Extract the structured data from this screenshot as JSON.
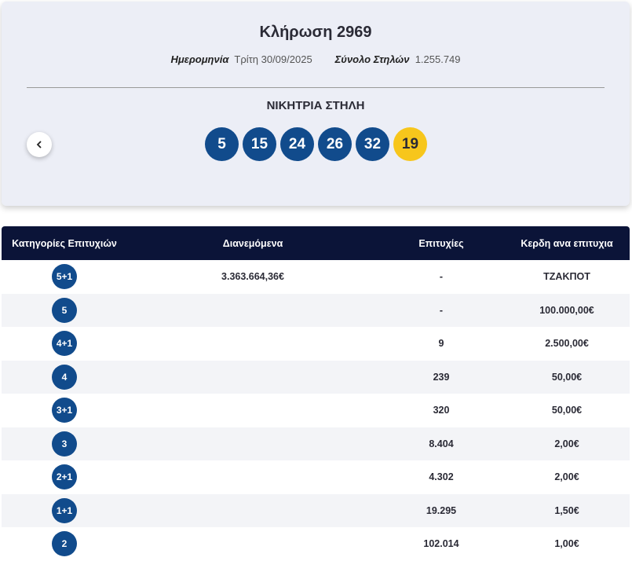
{
  "header": {
    "title": "Κλήρωση 2969",
    "date_label": "Ημερομηνία",
    "date_value": "Τρίτη 30/09/2025",
    "total_label": "Σύνολο Στηλών",
    "total_value": "1.255.749",
    "winning_label": "ΝΙΚΗΤΡΙΑ ΣΤΗΛΗ",
    "numbers": [
      "5",
      "15",
      "24",
      "26",
      "32"
    ],
    "bonus": "19"
  },
  "table": {
    "headers": [
      "Κατηγορίες Επιτυχιών",
      "Διανεμόμενα",
      "Επιτυχίες",
      "Κερδη ανα επιτυχια"
    ],
    "rows": [
      {
        "category": "5+1",
        "distributed": "3.363.664,36€",
        "winners": "-",
        "prize": "ΤΖΑΚΠΟΤ"
      },
      {
        "category": "5",
        "winners": "-",
        "prize": "100.000,00€"
      },
      {
        "category": "4+1",
        "winners": "9",
        "prize": "2.500,00€"
      },
      {
        "category": "4",
        "winners": "239",
        "prize": "50,00€"
      },
      {
        "category": "3+1",
        "winners": "320",
        "prize": "50,00€"
      },
      {
        "category": "3",
        "winners": "8.404",
        "prize": "2,00€"
      },
      {
        "category": "2+1",
        "winners": "4.302",
        "prize": "2,00€"
      },
      {
        "category": "1+1",
        "winners": "19.295",
        "prize": "1,50€"
      },
      {
        "category": "2",
        "winners": "102.014",
        "prize": "1,00€"
      }
    ]
  }
}
